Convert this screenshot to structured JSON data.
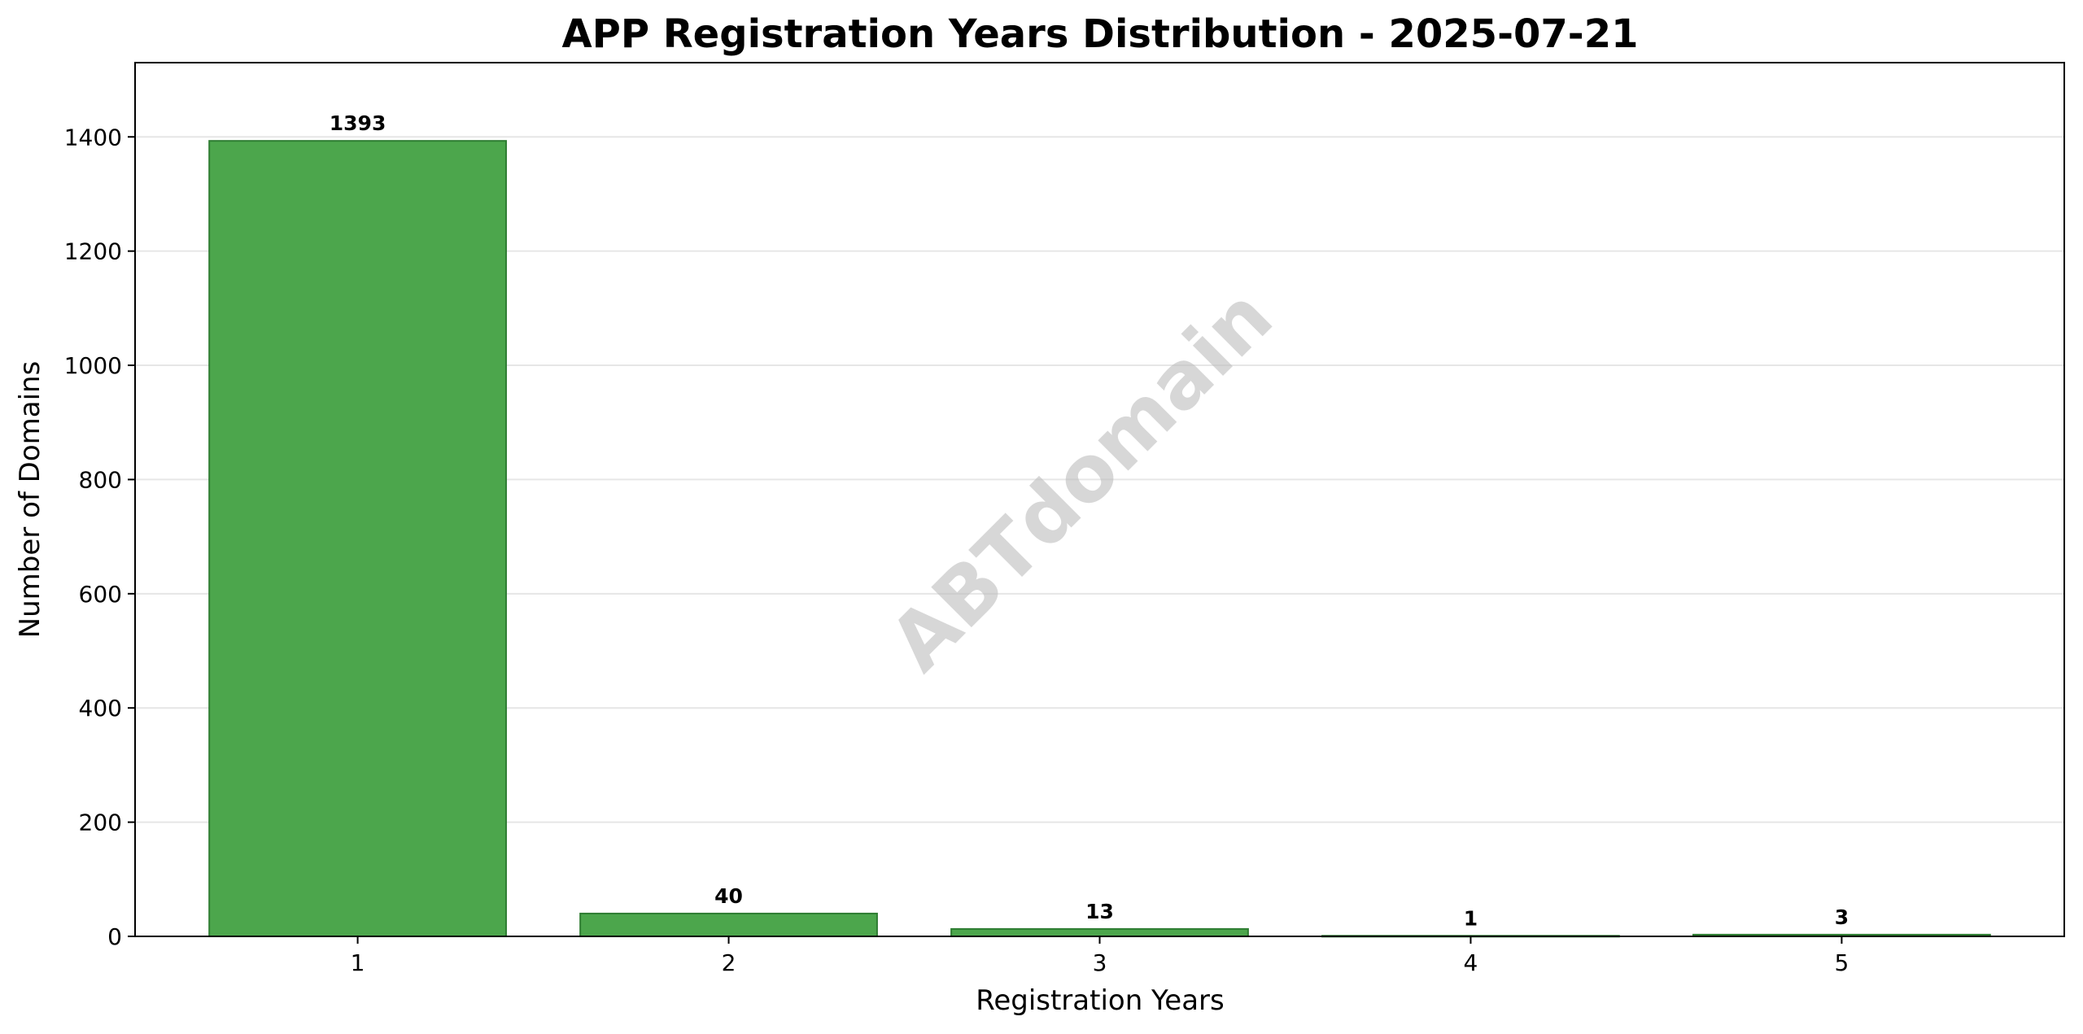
{
  "watermark": "ABTdomain",
  "colors": {
    "bar_fill": "#4ca64c",
    "bar_edge": "#2e7d32",
    "grid": "#e6e6e6",
    "axis": "#000000"
  },
  "chart_data": {
    "type": "bar",
    "title": "APP Registration Years Distribution - 2025-07-21",
    "xlabel": "Registration Years",
    "ylabel": "Number of Domains",
    "categories": [
      "1",
      "2",
      "3",
      "4",
      "5"
    ],
    "values": [
      1393,
      40,
      13,
      1,
      3
    ],
    "data_labels": [
      "1393",
      "40",
      "13",
      "1",
      "3"
    ],
    "ylim": [
      0,
      1530
    ],
    "yticks": [
      0,
      200,
      400,
      600,
      800,
      1000,
      1200,
      1400
    ],
    "ytick_labels": [
      "0",
      "200",
      "400",
      "600",
      "800",
      "1000",
      "1200",
      "1400"
    ],
    "grid": "y",
    "legend": "none"
  }
}
